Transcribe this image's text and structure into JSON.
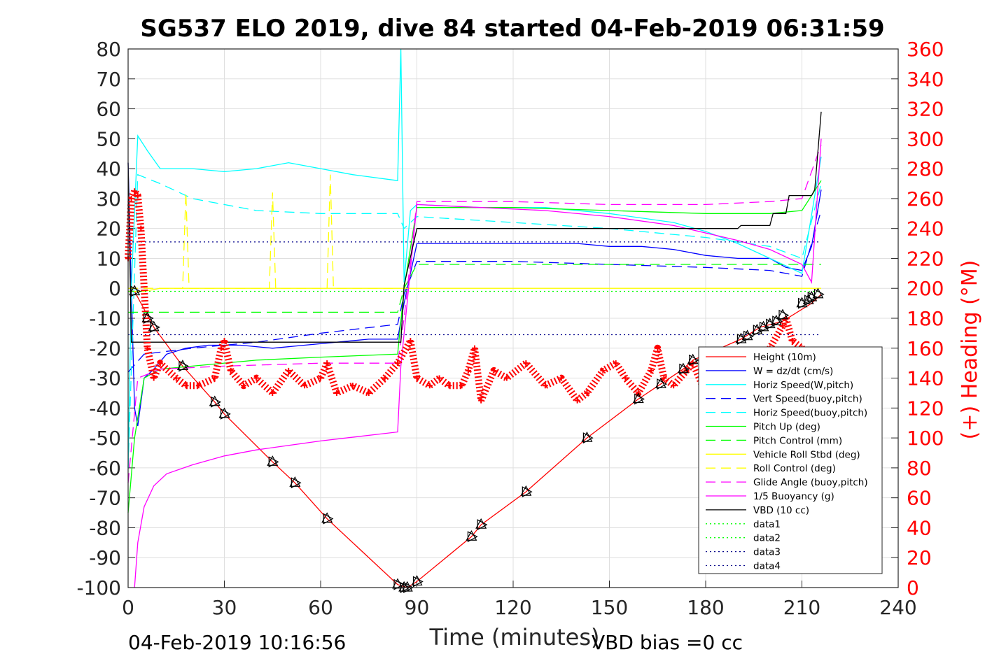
{
  "chart_data": {
    "type": "line",
    "title": "SG537 ELO 2019, dive 84 started 04-Feb-2019 06:31:59",
    "xlabel": "Time (minutes)",
    "ylabel_right": "(+) Heading (°M)",
    "footer_left": "04-Feb-2019 10:16:56",
    "footer_right": "VBD bias =0 cc",
    "xlim": [
      0,
      240
    ],
    "ylim": [
      -100,
      80
    ],
    "ylim_right": [
      0,
      360
    ],
    "x_ticks": [
      "0",
      "30",
      "60",
      "90",
      "120",
      "150",
      "180",
      "210",
      "240"
    ],
    "y_ticks": [
      "80",
      "70",
      "60",
      "50",
      "40",
      "30",
      "20",
      "10",
      "0",
      "-10",
      "-20",
      "-30",
      "-40",
      "-50",
      "-60",
      "-70",
      "-80",
      "-90",
      "-100"
    ],
    "y_right_ticks": [
      "360",
      "340",
      "320",
      "300",
      "280",
      "260",
      "240",
      "220",
      "200",
      "180",
      "160",
      "140",
      "120",
      "100",
      "80",
      "60",
      "40",
      "20",
      "0"
    ],
    "grid": true,
    "legend_position": "lower-right",
    "colors": {
      "red": "#ff0000",
      "blue": "#0000ff",
      "cyan": "#00ffff",
      "green": "#00ff00",
      "yellow": "#ffff00",
      "magenta": "#ff00ff",
      "black": "#000000",
      "navy": "#00008b"
    },
    "legend": [
      {
        "name": "Height (10m)",
        "color": "#ff0000",
        "style": "solid"
      },
      {
        "name": "W = dz/dt (cm/s)",
        "color": "#0000ff",
        "style": "solid"
      },
      {
        "name": "Horiz Speed(W,pitch)",
        "color": "#00ffff",
        "style": "solid"
      },
      {
        "name": "Vert Speed(buoy,pitch)",
        "color": "#0000ff",
        "style": "dashed"
      },
      {
        "name": "Horiz Speed(buoy,pitch)",
        "color": "#00ffff",
        "style": "dashed"
      },
      {
        "name": "Pitch Up (deg)",
        "color": "#00ff00",
        "style": "solid"
      },
      {
        "name": "Pitch Control (mm)",
        "color": "#00ff00",
        "style": "dashed"
      },
      {
        "name": "Vehicle Roll Stbd (deg)",
        "color": "#ffff00",
        "style": "solid"
      },
      {
        "name": "Roll Control (deg)",
        "color": "#ffff00",
        "style": "dashed"
      },
      {
        "name": "Glide Angle (buoy,pitch)",
        "color": "#ff00ff",
        "style": "dashed"
      },
      {
        "name": "1/5 Buoyancy (g)",
        "color": "#ff00ff",
        "style": "solid"
      },
      {
        "name": "VBD (10 cc)",
        "color": "#000000",
        "style": "solid"
      },
      {
        "name": "data1",
        "color": "#00ff00",
        "style": "dotted"
      },
      {
        "name": "data2",
        "color": "#00ff00",
        "style": "dotted"
      },
      {
        "name": "data3",
        "color": "#00008b",
        "style": "dotted"
      },
      {
        "name": "data4",
        "color": "#00008b",
        "style": "dotted"
      }
    ],
    "series": [
      {
        "name": "Height (10m)",
        "axis": "left",
        "x": [
          0,
          2,
          8,
          17,
          27,
          30,
          45,
          52,
          62,
          84,
          87,
          90,
          107,
          110,
          124,
          143,
          159,
          166,
          173,
          176,
          191,
          197,
          204,
          213,
          216
        ],
        "y": [
          -1,
          -1,
          -13,
          -26,
          -38,
          -42,
          -58,
          -65,
          -77,
          -99,
          -100,
          -98,
          -83,
          -79,
          -68,
          -50,
          -37,
          -32,
          -27,
          -24,
          -17,
          -13,
          -11,
          -5,
          -2
        ]
      },
      {
        "name": "W = dz/dt (cm/s)",
        "axis": "left",
        "x": [
          0,
          1,
          2,
          3,
          5,
          8,
          12,
          18,
          25,
          35,
          45,
          55,
          65,
          75,
          84,
          86,
          90,
          100,
          120,
          140,
          150,
          160,
          170,
          180,
          190,
          200,
          205,
          210,
          213,
          216
        ],
        "y": [
          42,
          0,
          -40,
          -46,
          -30,
          -27,
          -22,
          -20,
          -19,
          -19,
          -20,
          -19,
          -18,
          -17,
          -17,
          -5,
          15,
          15,
          15,
          15,
          14,
          14,
          13,
          11,
          10,
          10,
          7,
          6,
          14,
          33
        ]
      },
      {
        "name": "Horiz Speed(W,pitch)",
        "axis": "left",
        "x": [
          0,
          1,
          3,
          6,
          10,
          20,
          30,
          40,
          50,
          60,
          70,
          84,
          85,
          86,
          88,
          90,
          110,
          130,
          150,
          170,
          180,
          190,
          200,
          210,
          216
        ],
        "y": [
          -60,
          0,
          51,
          46,
          40,
          40,
          39,
          40,
          42,
          40,
          38,
          36,
          80,
          2,
          26,
          28,
          27,
          27,
          25,
          22,
          19,
          15,
          10,
          5,
          44
        ]
      },
      {
        "name": "Vert Speed(buoy,pitch)",
        "axis": "left",
        "x": [
          0,
          5,
          20,
          40,
          60,
          84,
          86,
          90,
          120,
          150,
          180,
          200,
          210,
          216
        ],
        "y": [
          -28,
          -22,
          -20,
          -18,
          -15,
          -12,
          -2,
          9,
          9,
          8,
          7,
          6,
          4,
          26
        ]
      },
      {
        "name": "Horiz Speed(buoy,pitch)",
        "axis": "left",
        "x": [
          0,
          3,
          10,
          20,
          40,
          60,
          84,
          86,
          90,
          120,
          150,
          180,
          200,
          210,
          216
        ],
        "y": [
          -60,
          38,
          35,
          30,
          26,
          25,
          25,
          20,
          24,
          22,
          20,
          17,
          14,
          10,
          35
        ]
      },
      {
        "name": "Pitch Up (deg)",
        "axis": "left",
        "x": [
          0,
          2,
          5,
          10,
          20,
          40,
          60,
          84,
          86,
          90,
          120,
          150,
          180,
          200,
          210,
          216
        ],
        "y": [
          -75,
          -50,
          -30,
          -27,
          -26,
          -24,
          -23,
          -22,
          0,
          27,
          27,
          26,
          25,
          25,
          26,
          36
        ]
      },
      {
        "name": "Pitch Control (mm)",
        "axis": "left",
        "x": [
          0,
          20,
          60,
          84,
          86,
          90,
          216
        ],
        "y": [
          -8,
          -8,
          -8,
          -8,
          0,
          8,
          8
        ]
      },
      {
        "name": "Vehicle Roll Stbd (deg)",
        "axis": "left",
        "x": [
          0,
          5,
          10,
          30,
          60,
          84,
          90,
          120,
          150,
          180,
          210,
          216
        ],
        "y": [
          -1,
          -1,
          0,
          0,
          0,
          0,
          0,
          0,
          0,
          0,
          0,
          0
        ]
      },
      {
        "name": "Roll Control (deg)",
        "axis": "left",
        "x": [
          0,
          5,
          17,
          18,
          19,
          44,
          45,
          46,
          62,
          63,
          64,
          84
        ],
        "y": [
          0,
          0,
          0,
          32,
          0,
          0,
          32,
          0,
          0,
          38,
          0,
          0
        ]
      },
      {
        "name": "Glide Angle (buoy,pitch)",
        "axis": "left",
        "x": [
          0,
          3,
          10,
          30,
          60,
          84,
          86,
          90,
          120,
          150,
          180,
          200,
          210,
          216
        ],
        "y": [
          -65,
          -30,
          -27,
          -26,
          -25,
          -25,
          -10,
          29,
          29,
          28,
          28,
          29,
          30,
          48
        ]
      },
      {
        "name": "1/5 Buoyancy (g)",
        "axis": "left",
        "x": [
          2,
          3,
          5,
          8,
          12,
          20,
          30,
          40,
          60,
          84,
          85,
          90,
          110,
          130,
          150,
          170,
          190,
          200,
          210,
          213,
          216
        ],
        "y": [
          -100,
          -85,
          -73,
          -66,
          -62,
          -59,
          -56,
          -54,
          -51,
          -48,
          -26,
          28,
          27,
          26,
          24,
          21,
          16,
          13,
          8,
          2,
          50
        ]
      },
      {
        "name": "VBD (10 cc)",
        "axis": "left",
        "x": [
          0,
          1,
          2,
          84,
          85,
          86,
          90,
          190,
          191,
          200,
          201,
          205,
          206,
          213,
          214,
          216
        ],
        "y": [
          42,
          -18,
          -18,
          -18,
          -18,
          1,
          20,
          20,
          21,
          21,
          25,
          25,
          31,
          31,
          33,
          59
        ]
      },
      {
        "name": "data1",
        "axis": "left",
        "x": [
          0,
          216
        ],
        "y": [
          -1,
          -1
        ]
      },
      {
        "name": "data3",
        "axis": "left",
        "x": [
          0,
          216
        ],
        "y": [
          15.5,
          15.5
        ]
      },
      {
        "name": "data4",
        "axis": "left",
        "x": [
          0,
          216
        ],
        "y": [
          -15.5,
          -15.5
        ]
      },
      {
        "name": "Heading",
        "axis": "right",
        "marker": "+",
        "x": [
          0,
          1,
          2,
          3,
          4,
          6,
          8,
          10,
          15,
          18,
          22,
          27,
          29,
          30,
          32,
          36,
          40,
          45,
          50,
          55,
          60,
          62,
          65,
          70,
          75,
          80,
          84,
          88,
          90,
          94,
          97,
          100,
          104,
          106,
          108,
          110,
          114,
          118,
          124,
          130,
          135,
          140,
          143,
          148,
          152,
          155,
          159,
          163,
          165,
          167,
          170,
          174,
          176,
          180,
          185,
          190,
          195,
          200,
          204,
          205,
          207,
          210,
          212
        ],
        "y": [
          220,
          260,
          265,
          262,
          240,
          160,
          140,
          150,
          140,
          135,
          135,
          140,
          160,
          165,
          145,
          135,
          140,
          130,
          145,
          135,
          140,
          150,
          130,
          135,
          130,
          140,
          150,
          165,
          140,
          135,
          140,
          135,
          135,
          145,
          160,
          125,
          145,
          140,
          150,
          135,
          140,
          125,
          130,
          145,
          150,
          140,
          130,
          145,
          160,
          140,
          135,
          145,
          150,
          130,
          150,
          155,
          145,
          160,
          175,
          180,
          165,
          160,
          150
        ]
      }
    ],
    "markers": {
      "name": "Height (10m)",
      "symbol": "triangles",
      "x": [
        2,
        6,
        8,
        17,
        27,
        30,
        45,
        52,
        62,
        84,
        86,
        87,
        90,
        107,
        110,
        124,
        143,
        159,
        166,
        173,
        176,
        191,
        193,
        196,
        198,
        200,
        202,
        204,
        210,
        212,
        213,
        215
      ],
      "y": [
        -1,
        -10,
        -13,
        -26,
        -38,
        -42,
        -58,
        -65,
        -77,
        -99,
        -100,
        -100,
        -98,
        -83,
        -79,
        -68,
        -50,
        -37,
        -32,
        -27,
        -24,
        -17,
        -16,
        -14,
        -13,
        -12,
        -11,
        -9,
        -5,
        -4,
        -3,
        -2
      ]
    }
  }
}
